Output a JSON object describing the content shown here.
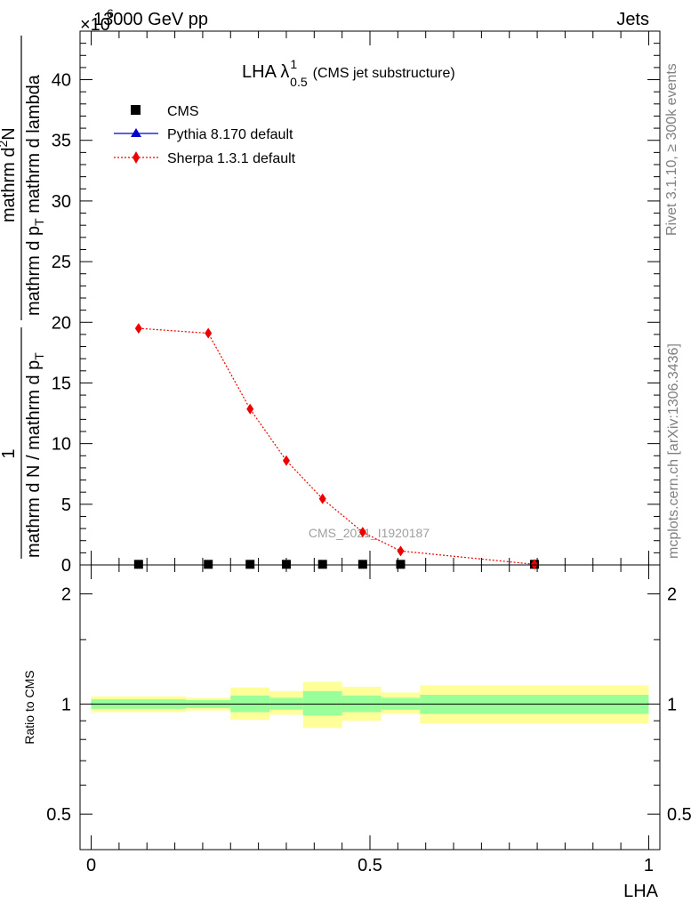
{
  "header": {
    "left_title": "13000 GeV pp",
    "right_title": "Jets",
    "multiplier": "×10",
    "multiplier_exp": "6"
  },
  "side_labels": {
    "rivet": "Rivet 3.1.10, ≥ 300k events",
    "mcplots": "mcplots.cern.ch [arXiv:1306.3436]"
  },
  "plot_label": {
    "main": "LHA λ",
    "sup": "1",
    "sub": "0.5",
    "extra": "(CMS jet substructure)"
  },
  "watermark": "CMS_2021_I1920187",
  "colors": {
    "cms": "#000000",
    "pythia": "#0000cc",
    "sherpa": "#ee0000",
    "band_outer": "#ffff99",
    "band_inner": "#99ff99"
  },
  "chart_data": [
    {
      "type": "scatter",
      "panel": "main",
      "xlim": [
        -0.02,
        1.02
      ],
      "ylim": [
        0,
        44
      ],
      "y_multiplier": 1000000,
      "xlabel": "LHA",
      "ylabel": "1 / mathrm d N / mathrm d p_T mathrm d p_T mathrm d lambda · mathrm d^2N",
      "ylabel_parts": {
        "num_top": "1",
        "den_top": "mathrm d N / mathrm d p",
        "den_top_sub": "T",
        "num_bottom": "mathrm d",
        "num_bottom_sup": "2",
        "num_bottom_rest": "N",
        "den_bottom": "mathrm d p",
        "den_bottom_sub": "T",
        "den_bottom_rest": " mathrm d lambda"
      },
      "yticks": [
        0,
        5,
        10,
        15,
        20,
        25,
        30,
        35,
        40
      ],
      "legend": [
        "CMS",
        "Pythia 8.170 default",
        "Sherpa 1.3.1 default"
      ],
      "series": [
        {
          "name": "CMS",
          "marker": "square",
          "x": [
            0.085,
            0.21,
            0.285,
            0.35,
            0.415,
            0.487,
            0.555,
            0.795
          ],
          "y": [
            0.05,
            0.05,
            0.05,
            0.05,
            0.05,
            0.05,
            0.05,
            0.05
          ]
        },
        {
          "name": "Pythia 8.170 default",
          "marker": "triangle",
          "x": [],
          "y": []
        },
        {
          "name": "Sherpa 1.3.1 default",
          "marker": "diamond",
          "x": [
            0.085,
            0.21,
            0.285,
            0.35,
            0.415,
            0.487,
            0.555,
            0.795
          ],
          "y": [
            19.5,
            19.1,
            12.85,
            8.6,
            5.45,
            2.7,
            1.15,
            0.05
          ]
        }
      ]
    },
    {
      "type": "area",
      "panel": "ratio",
      "xlim": [
        -0.02,
        1.02
      ],
      "ylim": [
        0.4,
        2.4
      ],
      "log_y": true,
      "ylabel": "Ratio to CMS",
      "xlabel": "LHA",
      "xticks": [
        0,
        0.5,
        1
      ],
      "xtick_labels": [
        "0",
        "0.5",
        "1"
      ],
      "yticks": [
        0.5,
        1,
        2
      ],
      "ytick_labels": [
        "0.5",
        "1",
        "2"
      ],
      "bins": [
        {
          "x0": 0.0,
          "x1": 0.17,
          "outer": [
            0.95,
            1.05
          ],
          "inner": [
            0.97,
            1.03
          ]
        },
        {
          "x0": 0.17,
          "x1": 0.25,
          "outer": [
            0.96,
            1.04
          ],
          "inner": [
            0.975,
            1.025
          ]
        },
        {
          "x0": 0.25,
          "x1": 0.32,
          "outer": [
            0.905,
            1.11
          ],
          "inner": [
            0.95,
            1.055
          ]
        },
        {
          "x0": 0.32,
          "x1": 0.38,
          "outer": [
            0.935,
            1.085
          ],
          "inner": [
            0.965,
            1.04
          ]
        },
        {
          "x0": 0.38,
          "x1": 0.45,
          "outer": [
            0.86,
            1.15
          ],
          "inner": [
            0.93,
            1.085
          ]
        },
        {
          "x0": 0.45,
          "x1": 0.52,
          "outer": [
            0.9,
            1.115
          ],
          "inner": [
            0.95,
            1.055
          ]
        },
        {
          "x0": 0.52,
          "x1": 0.59,
          "outer": [
            0.94,
            1.075
          ],
          "inner": [
            0.965,
            1.04
          ]
        },
        {
          "x0": 0.59,
          "x1": 1.0,
          "outer": [
            0.885,
            1.125
          ],
          "inner": [
            0.94,
            1.06
          ]
        }
      ]
    }
  ]
}
